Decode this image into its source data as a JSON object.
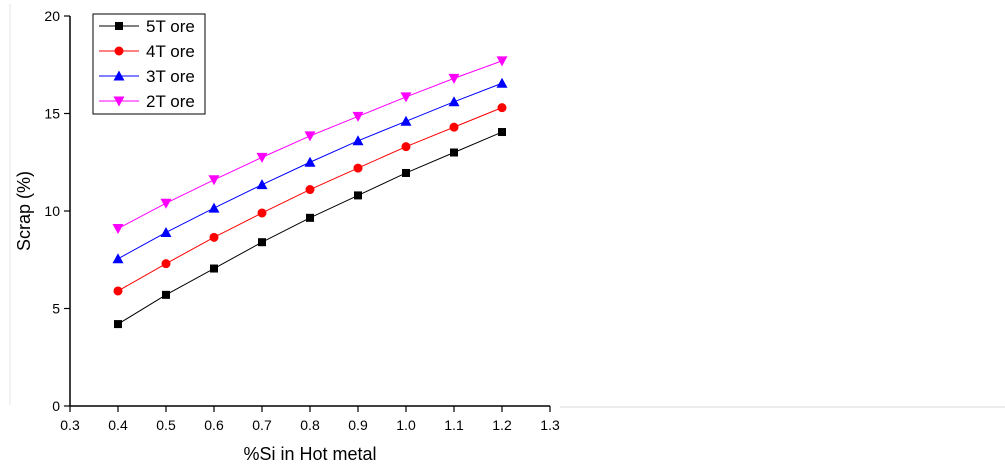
{
  "chart_data": {
    "type": "line",
    "title": "",
    "xlabel": "%Si in Hot metal",
    "ylabel": "Scrap (%)",
    "xlim": [
      0.3,
      1.3
    ],
    "ylim": [
      0,
      20
    ],
    "xticks": [
      "0.3",
      "0.4",
      "0.5",
      "0.6",
      "0.7",
      "0.8",
      "0.9",
      "1.0",
      "1.1",
      "1.2",
      "1.3"
    ],
    "yticks": [
      "0",
      "5",
      "10",
      "15",
      "20"
    ],
    "grid": false,
    "legend_position": "top-left",
    "x": [
      0.4,
      0.5,
      0.6,
      0.7,
      0.8,
      0.9,
      1.0,
      1.1,
      1.2
    ],
    "series": [
      {
        "name": "5T ore",
        "color": "#000000",
        "marker": "square",
        "values": [
          4.2,
          5.7,
          7.05,
          8.4,
          9.65,
          10.8,
          11.95,
          13.0,
          14.05
        ]
      },
      {
        "name": "4T ore",
        "color": "#ff0000",
        "marker": "circle",
        "values": [
          5.9,
          7.3,
          8.65,
          9.9,
          11.1,
          12.2,
          13.3,
          14.3,
          15.3
        ]
      },
      {
        "name": "3T ore",
        "color": "#0000ff",
        "marker": "triangle-up",
        "values": [
          7.55,
          8.9,
          10.15,
          11.35,
          12.5,
          13.6,
          14.6,
          15.6,
          16.55
        ]
      },
      {
        "name": "2T ore",
        "color": "#ff00ff",
        "marker": "triangle-down",
        "values": [
          9.1,
          10.4,
          11.6,
          12.75,
          13.85,
          14.85,
          15.85,
          16.8,
          17.7
        ]
      }
    ]
  }
}
